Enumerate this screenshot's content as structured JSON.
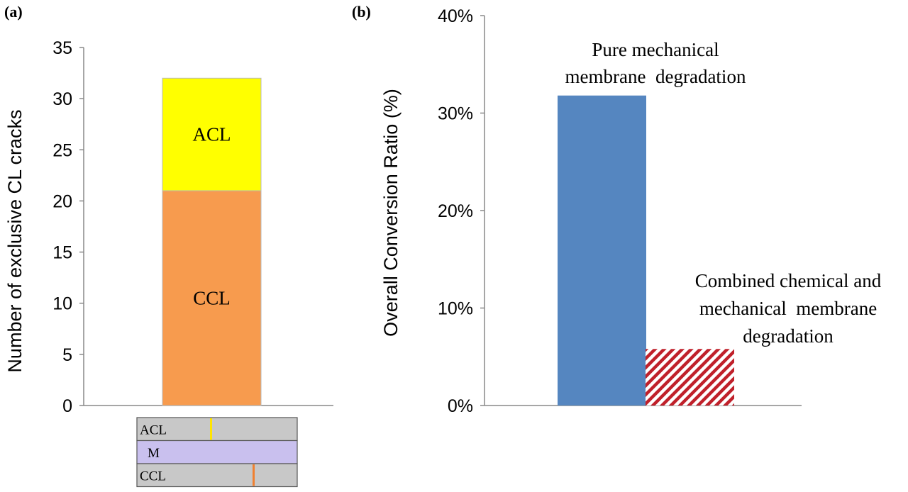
{
  "figure": {
    "panel_a_label": "(a)",
    "panel_b_label": "(b)"
  },
  "chart_data": [
    {
      "type": "bar",
      "stacked": true,
      "title": "",
      "xlabel": "",
      "ylabel": "Number of exclusive CL cracks",
      "ylim": [
        0,
        35
      ],
      "yticks": [
        0,
        5,
        10,
        15,
        20,
        25,
        30,
        35
      ],
      "categories": [
        ""
      ],
      "series": [
        {
          "name": "CCL",
          "values": [
            21
          ],
          "color": "#F79B4E"
        },
        {
          "name": "ACL",
          "values": [
            11
          ],
          "color": "#FFFF00"
        }
      ],
      "inset": {
        "layers": [
          {
            "label": "ACL",
            "color": "#C8C8C8",
            "crack_color": "#FFE400"
          },
          {
            "label": "M",
            "color": "#C9C0EE",
            "crack_color": ""
          },
          {
            "label": "CCL",
            "color": "#C8C8C8",
            "crack_color": "#F08030"
          }
        ]
      }
    },
    {
      "type": "bar",
      "title": "",
      "xlabel": "",
      "ylabel": "Overall Conversion Ratio (%)",
      "ylim": [
        0,
        40
      ],
      "yticks": [
        "0%",
        "10%",
        "20%",
        "30%",
        "40%"
      ],
      "categories": [
        "Pure mechanical membrane degradation",
        "Combined chemical and mechanical membrane degradation"
      ],
      "category_label_lines": [
        [
          "Pure mechanical",
          "membrane  degradation"
        ],
        [
          "Combined chemical and",
          "mechanical  membrane",
          "degradation"
        ]
      ],
      "values": [
        31.8,
        5.8
      ],
      "colors": [
        "#5586C0",
        "#C0202A"
      ],
      "patterns": [
        "solid",
        "hatched"
      ]
    }
  ]
}
